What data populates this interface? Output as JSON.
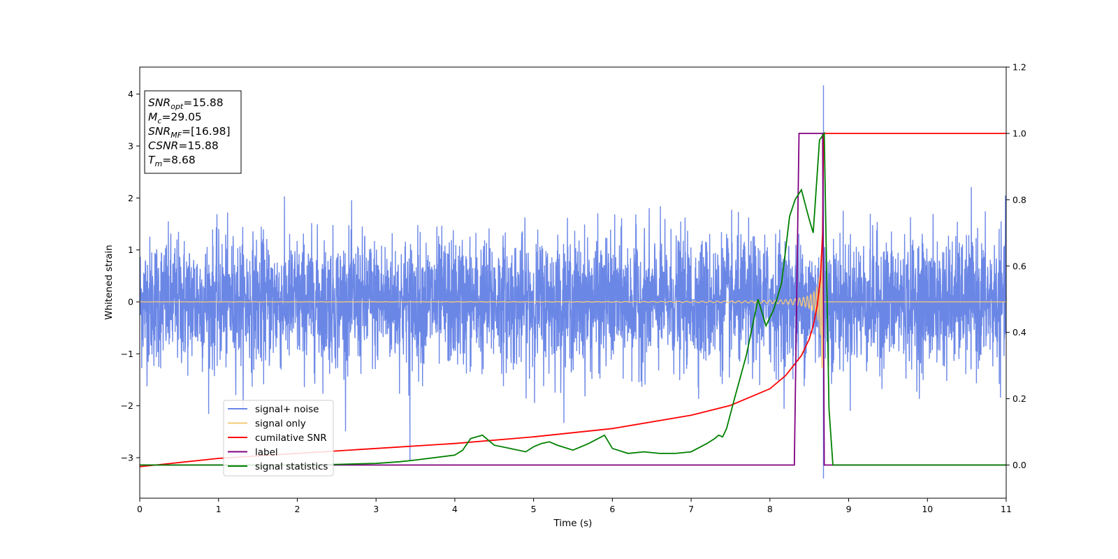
{
  "chart_data": {
    "type": "line",
    "xlabel": "Time (s)",
    "ylabel": "Whitened strain",
    "xlim": [
      0,
      11
    ],
    "ylim_left": [
      -3.78,
      4.52
    ],
    "ylim_right": [
      -0.1,
      1.2
    ],
    "x_ticks": [
      0,
      1,
      2,
      3,
      4,
      5,
      6,
      7,
      8,
      9,
      10,
      11
    ],
    "y_ticks_left": [
      -3,
      -2,
      -1,
      0,
      1,
      2,
      3,
      4
    ],
    "y_ticks_right": [
      0.0,
      0.2,
      0.4,
      0.6,
      0.8,
      1.0,
      1.2
    ],
    "grid": false,
    "legend_position": "lower-left",
    "annotation": [
      {
        "base": "SNR",
        "sub": "opt",
        "rest": "=15.88"
      },
      {
        "base": "M",
        "sub": "c",
        "rest": "=29.05"
      },
      {
        "base": "SNR",
        "sub": "MF",
        "rest": "=[16.98]"
      },
      {
        "base": "CSNR",
        "sub": "",
        "rest": "=15.88"
      },
      {
        "base": "T",
        "sub": "m",
        "rest": "=8.68"
      }
    ],
    "series": [
      {
        "name": "signal+ noise",
        "axis": "left",
        "color": "#6b87e6",
        "style": "noise",
        "std": 0.62,
        "spikes": [
          {
            "x": 8.68,
            "y": 4.17
          },
          {
            "x": 8.68,
            "y": -3.4
          },
          {
            "x": 3.43,
            "y": -3.05
          }
        ]
      },
      {
        "name": "signal only",
        "axis": "left",
        "color": "#f5c97a",
        "style": "chirp",
        "merger_time": 8.68,
        "peak_amplitude": 1.3
      },
      {
        "name": "cumilative SNR",
        "axis": "right",
        "color": "#ff0000",
        "x": [
          0,
          1,
          2,
          3,
          4,
          5,
          6,
          7,
          7.5,
          8,
          8.2,
          8.4,
          8.5,
          8.55,
          8.6,
          8.64,
          8.67,
          8.68,
          8.7,
          11
        ],
        "y": [
          -0.005,
          0.02,
          0.035,
          0.05,
          0.065,
          0.085,
          0.11,
          0.15,
          0.18,
          0.23,
          0.27,
          0.33,
          0.38,
          0.42,
          0.48,
          0.56,
          0.7,
          1.0,
          1.0,
          1.0
        ]
      },
      {
        "name": "label",
        "axis": "right",
        "color": "#800080",
        "x": [
          0,
          8.31,
          8.37,
          8.67,
          8.69,
          11
        ],
        "y": [
          0,
          0,
          1,
          1,
          0,
          0
        ]
      },
      {
        "name": "signal statistics",
        "axis": "right",
        "color": "#008000",
        "x": [
          0,
          2.0,
          2.5,
          3.0,
          3.3,
          3.5,
          4.0,
          4.1,
          4.2,
          4.35,
          4.5,
          4.7,
          4.9,
          5.0,
          5.1,
          5.2,
          5.3,
          5.5,
          5.7,
          5.9,
          6.0,
          6.2,
          6.4,
          6.6,
          6.8,
          7.0,
          7.2,
          7.3,
          7.35,
          7.4,
          7.45,
          7.55,
          7.7,
          7.85,
          7.95,
          8.05,
          8.15,
          8.2,
          8.25,
          8.32,
          8.4,
          8.5,
          8.55,
          8.63,
          8.69,
          8.75,
          8.8,
          11
        ],
        "y": [
          0,
          0,
          0.002,
          0.005,
          0.01,
          0.015,
          0.03,
          0.045,
          0.08,
          0.09,
          0.06,
          0.05,
          0.04,
          0.055,
          0.065,
          0.07,
          0.06,
          0.045,
          0.065,
          0.09,
          0.05,
          0.035,
          0.04,
          0.035,
          0.035,
          0.04,
          0.065,
          0.08,
          0.09,
          0.085,
          0.11,
          0.2,
          0.33,
          0.5,
          0.42,
          0.47,
          0.55,
          0.65,
          0.75,
          0.8,
          0.83,
          0.74,
          0.7,
          0.98,
          1.0,
          0.17,
          0.0,
          0.0
        ]
      }
    ]
  }
}
